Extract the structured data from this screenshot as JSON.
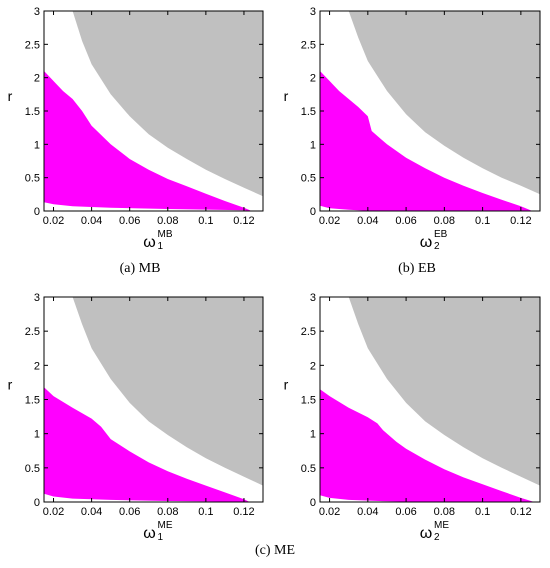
{
  "colors": {
    "stable": "#ff00ff",
    "chaotic": "#c0c0c0",
    "background": "#ffffff",
    "axis": "#000000"
  },
  "captions": [
    "(a)  MB",
    "(b)  EB",
    "(c)  ME"
  ],
  "chart_data": [
    {
      "type": "area",
      "xlabel": "ω",
      "xlabel_sub": "1",
      "xlabel_sup": "MB",
      "ylabel": "r",
      "xlim": [
        0.015,
        0.13
      ],
      "ylim": [
        0,
        3
      ],
      "xticks": [
        0.02,
        0.04,
        0.06,
        0.08,
        0.1,
        0.12
      ],
      "xtick_labels": [
        "0.02",
        "0.04",
        "0.06",
        "0.08",
        "0.1",
        "0.12"
      ],
      "yticks": [
        0,
        0.5,
        1,
        1.5,
        2,
        2.5,
        3
      ],
      "ytick_labels": [
        "0",
        "0.5",
        "1",
        "1.5",
        "2",
        "2.5",
        "3"
      ],
      "grid": false,
      "series": [
        {
          "color": "#ff00ff",
          "lower": [
            [
              0.015,
              0.13
            ],
            [
              0.02,
              0.1
            ],
            [
              0.03,
              0.07
            ],
            [
              0.05,
              0.05
            ],
            [
              0.08,
              0.03
            ],
            [
              0.12,
              0.01
            ],
            [
              0.124,
              0
            ]
          ],
          "upper": [
            [
              0.015,
              2.1
            ],
            [
              0.02,
              1.95
            ],
            [
              0.025,
              1.8
            ],
            [
              0.03,
              1.68
            ],
            [
              0.035,
              1.5
            ],
            [
              0.04,
              1.28
            ],
            [
              0.05,
              1.0
            ],
            [
              0.06,
              0.78
            ],
            [
              0.07,
              0.62
            ],
            [
              0.08,
              0.48
            ],
            [
              0.09,
              0.37
            ],
            [
              0.1,
              0.26
            ],
            [
              0.11,
              0.15
            ],
            [
              0.12,
              0.05
            ],
            [
              0.124,
              0
            ]
          ]
        },
        {
          "color": "#c0c0c0",
          "lower": [
            [
              0.03,
              3.0
            ],
            [
              0.035,
              2.55
            ],
            [
              0.04,
              2.2
            ],
            [
              0.05,
              1.75
            ],
            [
              0.06,
              1.42
            ],
            [
              0.07,
              1.15
            ],
            [
              0.08,
              0.95
            ],
            [
              0.09,
              0.78
            ],
            [
              0.1,
              0.62
            ],
            [
              0.11,
              0.48
            ],
            [
              0.12,
              0.35
            ],
            [
              0.13,
              0.22
            ]
          ],
          "upper": [
            [
              0.03,
              3
            ],
            [
              0.13,
              3
            ]
          ]
        }
      ]
    },
    {
      "type": "area",
      "xlabel": "ω",
      "xlabel_sub": "2",
      "xlabel_sup": "EB",
      "ylabel": "r",
      "xlim": [
        0.015,
        0.13
      ],
      "ylim": [
        0,
        3
      ],
      "xticks": [
        0.02,
        0.04,
        0.06,
        0.08,
        0.1,
        0.12
      ],
      "xtick_labels": [
        "0.02",
        "0.04",
        "0.06",
        "0.08",
        "0.1",
        "0.12"
      ],
      "yticks": [
        0,
        0.5,
        1,
        1.5,
        2,
        2.5,
        3
      ],
      "ytick_labels": [
        "0",
        "0.5",
        "1",
        "1.5",
        "2",
        "2.5",
        "3"
      ],
      "grid": false,
      "series": [
        {
          "color": "#ff00ff",
          "lower": [
            [
              0.015,
              0.08
            ],
            [
              0.02,
              0.04
            ],
            [
              0.03,
              0.02
            ],
            [
              0.04,
              0.005
            ],
            [
              0.06,
              0
            ]
          ],
          "upper": [
            [
              0.015,
              2.1
            ],
            [
              0.02,
              1.95
            ],
            [
              0.025,
              1.8
            ],
            [
              0.03,
              1.68
            ],
            [
              0.035,
              1.56
            ],
            [
              0.04,
              1.42
            ],
            [
              0.042,
              1.2
            ],
            [
              0.05,
              1.0
            ],
            [
              0.06,
              0.8
            ],
            [
              0.07,
              0.64
            ],
            [
              0.08,
              0.5
            ],
            [
              0.09,
              0.38
            ],
            [
              0.1,
              0.27
            ],
            [
              0.11,
              0.17
            ],
            [
              0.12,
              0.07
            ],
            [
              0.126,
              0
            ]
          ]
        },
        {
          "color": "#c0c0c0",
          "lower": [
            [
              0.03,
              3.0
            ],
            [
              0.035,
              2.6
            ],
            [
              0.04,
              2.25
            ],
            [
              0.05,
              1.8
            ],
            [
              0.06,
              1.45
            ],
            [
              0.07,
              1.18
            ],
            [
              0.08,
              0.98
            ],
            [
              0.09,
              0.8
            ],
            [
              0.1,
              0.64
            ],
            [
              0.11,
              0.5
            ],
            [
              0.12,
              0.38
            ],
            [
              0.13,
              0.25
            ]
          ],
          "upper": [
            [
              0.03,
              3
            ],
            [
              0.13,
              3
            ]
          ]
        }
      ]
    },
    {
      "type": "area",
      "xlabel": "ω",
      "xlabel_sub": "1",
      "xlabel_sup": "ME",
      "ylabel": "r",
      "xlim": [
        0.015,
        0.13
      ],
      "ylim": [
        0,
        3
      ],
      "xticks": [
        0.02,
        0.04,
        0.06,
        0.08,
        0.1,
        0.12
      ],
      "xtick_labels": [
        "0.02",
        "0.04",
        "0.06",
        "0.08",
        "0.1",
        "0.12"
      ],
      "yticks": [
        0,
        0.5,
        1,
        1.5,
        2,
        2.5,
        3
      ],
      "ytick_labels": [
        "0",
        "0.5",
        "1",
        "1.5",
        "2",
        "2.5",
        "3"
      ],
      "grid": false,
      "series": [
        {
          "color": "#ff00ff",
          "lower": [
            [
              0.015,
              0.12
            ],
            [
              0.02,
              0.08
            ],
            [
              0.03,
              0.05
            ],
            [
              0.05,
              0.03
            ],
            [
              0.08,
              0.015
            ],
            [
              0.12,
              0.005
            ],
            [
              0.123,
              0
            ]
          ],
          "upper": [
            [
              0.015,
              1.68
            ],
            [
              0.02,
              1.55
            ],
            [
              0.03,
              1.38
            ],
            [
              0.04,
              1.22
            ],
            [
              0.045,
              1.1
            ],
            [
              0.05,
              0.92
            ],
            [
              0.06,
              0.74
            ],
            [
              0.07,
              0.58
            ],
            [
              0.08,
              0.45
            ],
            [
              0.09,
              0.34
            ],
            [
              0.1,
              0.24
            ],
            [
              0.11,
              0.14
            ],
            [
              0.12,
              0.04
            ],
            [
              0.123,
              0
            ]
          ]
        },
        {
          "color": "#c0c0c0",
          "lower": [
            [
              0.03,
              3.0
            ],
            [
              0.035,
              2.6
            ],
            [
              0.04,
              2.25
            ],
            [
              0.05,
              1.8
            ],
            [
              0.06,
              1.45
            ],
            [
              0.07,
              1.18
            ],
            [
              0.08,
              0.98
            ],
            [
              0.09,
              0.8
            ],
            [
              0.1,
              0.64
            ],
            [
              0.11,
              0.5
            ],
            [
              0.12,
              0.37
            ],
            [
              0.13,
              0.24
            ]
          ],
          "upper": [
            [
              0.03,
              3
            ],
            [
              0.13,
              3
            ]
          ]
        }
      ]
    },
    {
      "type": "area",
      "xlabel": "ω",
      "xlabel_sub": "2",
      "xlabel_sup": "ME",
      "ylabel": "r",
      "xlim": [
        0.015,
        0.13
      ],
      "ylim": [
        0,
        3
      ],
      "xticks": [
        0.02,
        0.04,
        0.06,
        0.08,
        0.1,
        0.12
      ],
      "xtick_labels": [
        "0.02",
        "0.04",
        "0.06",
        "0.08",
        "0.1",
        "0.12"
      ],
      "yticks": [
        0,
        0.5,
        1,
        1.5,
        2,
        2.5,
        3
      ],
      "ytick_labels": [
        "0",
        "0.5",
        "1",
        "1.5",
        "2",
        "2.5",
        "3"
      ],
      "grid": false,
      "series": [
        {
          "color": "#ff00ff",
          "lower": [
            [
              0.015,
              0.1
            ],
            [
              0.02,
              0.06
            ],
            [
              0.03,
              0.03
            ],
            [
              0.05,
              0.01
            ],
            [
              0.07,
              0
            ]
          ],
          "upper": [
            [
              0.015,
              1.65
            ],
            [
              0.02,
              1.55
            ],
            [
              0.03,
              1.38
            ],
            [
              0.04,
              1.24
            ],
            [
              0.045,
              1.15
            ],
            [
              0.048,
              1.05
            ],
            [
              0.055,
              0.88
            ],
            [
              0.06,
              0.78
            ],
            [
              0.07,
              0.62
            ],
            [
              0.08,
              0.48
            ],
            [
              0.09,
              0.36
            ],
            [
              0.1,
              0.26
            ],
            [
              0.11,
              0.16
            ],
            [
              0.12,
              0.06
            ],
            [
              0.127,
              0
            ]
          ]
        },
        {
          "color": "#c0c0c0",
          "lower": [
            [
              0.03,
              3.0
            ],
            [
              0.035,
              2.6
            ],
            [
              0.04,
              2.25
            ],
            [
              0.05,
              1.8
            ],
            [
              0.06,
              1.45
            ],
            [
              0.07,
              1.18
            ],
            [
              0.08,
              0.98
            ],
            [
              0.09,
              0.8
            ],
            [
              0.1,
              0.64
            ],
            [
              0.11,
              0.5
            ],
            [
              0.12,
              0.37
            ],
            [
              0.13,
              0.24
            ]
          ],
          "upper": [
            [
              0.03,
              3
            ],
            [
              0.13,
              3
            ]
          ]
        }
      ]
    }
  ]
}
